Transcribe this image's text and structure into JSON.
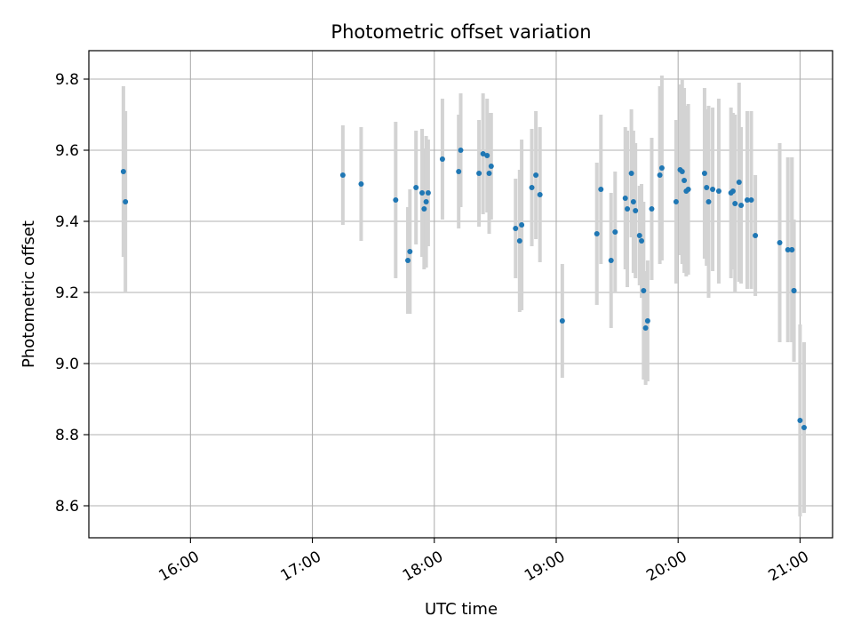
{
  "chart_data": {
    "type": "scatter",
    "title": "Photometric offset variation",
    "xlabel": "UTC time",
    "ylabel": "Photometric offset",
    "x_ticks": [
      "16:00",
      "17:00",
      "18:00",
      "19:00",
      "20:00",
      "21:00"
    ],
    "xlim": [
      "15:10",
      "21:16"
    ],
    "ylim": [
      8.51,
      9.88
    ],
    "y_ticks": [
      "8.6",
      "8.8",
      "9.0",
      "9.2",
      "9.4",
      "9.6",
      "9.8"
    ],
    "grid": true,
    "colors": {
      "point": "#1f77b4",
      "errorbar": "#d3d3d3",
      "grid": "#b0b0b0"
    },
    "points": [
      {
        "t": "15:27",
        "y": 9.54,
        "err": 0.24
      },
      {
        "t": "15:28",
        "y": 9.455,
        "err": 0.255
      },
      {
        "t": "17:15",
        "y": 9.53,
        "err": 0.14
      },
      {
        "t": "17:24",
        "y": 9.505,
        "err": 0.16
      },
      {
        "t": "17:41",
        "y": 9.46,
        "err": 0.22
      },
      {
        "t": "17:47",
        "y": 9.29,
        "err": 0.15
      },
      {
        "t": "17:48",
        "y": 9.315,
        "err": 0.175
      },
      {
        "t": "17:51",
        "y": 9.495,
        "err": 0.16
      },
      {
        "t": "17:54",
        "y": 9.48,
        "err": 0.18
      },
      {
        "t": "17:55",
        "y": 9.435,
        "err": 0.17
      },
      {
        "t": "17:56",
        "y": 9.455,
        "err": 0.185
      },
      {
        "t": "17:57",
        "y": 9.48,
        "err": 0.15
      },
      {
        "t": "18:04",
        "y": 9.575,
        "err": 0.17
      },
      {
        "t": "18:12",
        "y": 9.54,
        "err": 0.16
      },
      {
        "t": "18:13",
        "y": 9.6,
        "err": 0.16
      },
      {
        "t": "18:22",
        "y": 9.535,
        "err": 0.15
      },
      {
        "t": "18:24",
        "y": 9.59,
        "err": 0.17
      },
      {
        "t": "18:26",
        "y": 9.585,
        "err": 0.16
      },
      {
        "t": "18:27",
        "y": 9.535,
        "err": 0.17
      },
      {
        "t": "18:28",
        "y": 9.555,
        "err": 0.15
      },
      {
        "t": "18:40",
        "y": 9.38,
        "err": 0.14
      },
      {
        "t": "18:42",
        "y": 9.345,
        "err": 0.2
      },
      {
        "t": "18:43",
        "y": 9.39,
        "err": 0.24
      },
      {
        "t": "18:48",
        "y": 9.495,
        "err": 0.165
      },
      {
        "t": "18:50",
        "y": 9.53,
        "err": 0.18
      },
      {
        "t": "18:52",
        "y": 9.475,
        "err": 0.19
      },
      {
        "t": "19:03",
        "y": 9.12,
        "err": 0.16
      },
      {
        "t": "19:20",
        "y": 9.365,
        "err": 0.2
      },
      {
        "t": "19:22",
        "y": 9.49,
        "err": 0.21
      },
      {
        "t": "19:27",
        "y": 9.29,
        "err": 0.19
      },
      {
        "t": "19:29",
        "y": 9.37,
        "err": 0.17
      },
      {
        "t": "19:34",
        "y": 9.465,
        "err": 0.2
      },
      {
        "t": "19:35",
        "y": 9.435,
        "err": 0.22
      },
      {
        "t": "19:37",
        "y": 9.535,
        "err": 0.18
      },
      {
        "t": "19:38",
        "y": 9.455,
        "err": 0.2
      },
      {
        "t": "19:39",
        "y": 9.43,
        "err": 0.19
      },
      {
        "t": "19:41",
        "y": 9.36,
        "err": 0.14
      },
      {
        "t": "19:42",
        "y": 9.345,
        "err": 0.16
      },
      {
        "t": "19:43",
        "y": 9.205,
        "err": 0.25
      },
      {
        "t": "19:44",
        "y": 9.1,
        "err": 0.16
      },
      {
        "t": "19:45",
        "y": 9.12,
        "err": 0.17
      },
      {
        "t": "19:47",
        "y": 9.435,
        "err": 0.2
      },
      {
        "t": "19:51",
        "y": 9.53,
        "err": 0.25
      },
      {
        "t": "19:52",
        "y": 9.55,
        "err": 0.26
      },
      {
        "t": "19:59",
        "y": 9.455,
        "err": 0.23
      },
      {
        "t": "20:01",
        "y": 9.545,
        "err": 0.24
      },
      {
        "t": "20:02",
        "y": 9.54,
        "err": 0.26
      },
      {
        "t": "20:03",
        "y": 9.515,
        "err": 0.26
      },
      {
        "t": "20:04",
        "y": 9.485,
        "err": 0.24
      },
      {
        "t": "20:05",
        "y": 9.49,
        "err": 0.24
      },
      {
        "t": "20:13",
        "y": 9.535,
        "err": 0.24
      },
      {
        "t": "20:14",
        "y": 9.495,
        "err": 0.22
      },
      {
        "t": "20:15",
        "y": 9.455,
        "err": 0.27
      },
      {
        "t": "20:17",
        "y": 9.49,
        "err": 0.23
      },
      {
        "t": "20:20",
        "y": 9.485,
        "err": 0.26
      },
      {
        "t": "20:26",
        "y": 9.48,
        "err": 0.24
      },
      {
        "t": "20:27",
        "y": 9.485,
        "err": 0.22
      },
      {
        "t": "20:28",
        "y": 9.45,
        "err": 0.25
      },
      {
        "t": "20:30",
        "y": 9.51,
        "err": 0.28
      },
      {
        "t": "20:31",
        "y": 9.445,
        "err": 0.22
      },
      {
        "t": "20:34",
        "y": 9.46,
        "err": 0.25
      },
      {
        "t": "20:36",
        "y": 9.46,
        "err": 0.25
      },
      {
        "t": "20:38",
        "y": 9.36,
        "err": 0.17
      },
      {
        "t": "20:50",
        "y": 9.34,
        "err": 0.28
      },
      {
        "t": "20:54",
        "y": 9.32,
        "err": 0.26
      },
      {
        "t": "20:56",
        "y": 9.32,
        "err": 0.26
      },
      {
        "t": "20:57",
        "y": 9.205,
        "err": 0.2
      },
      {
        "t": "20:56",
        "y": 9.32,
        "err": 0.26
      },
      {
        "t": "20:57",
        "y": 9.205,
        "err": 0.2
      },
      {
        "t": "21:00",
        "y": 8.84,
        "err": 0.27
      },
      {
        "t": "21:02",
        "y": 8.82,
        "err": 0.24
      }
    ]
  }
}
